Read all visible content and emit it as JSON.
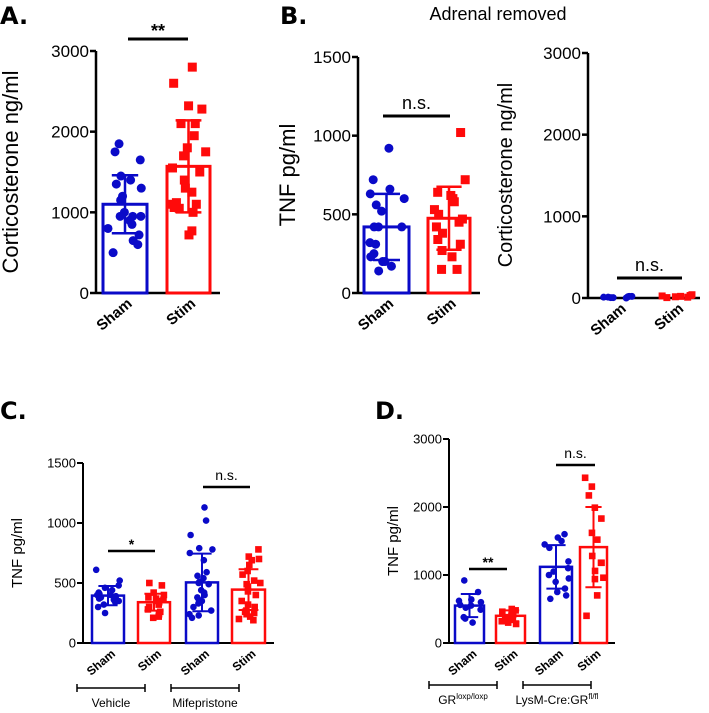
{
  "colors": {
    "sham": "#0a0ac8",
    "stim": "#ff0a0a",
    "axis": "#000000"
  },
  "panel_B_title": "Adrenal removed",
  "chart_data": [
    {
      "panel": "A.",
      "type": "bar",
      "ylabel": "Corticosterone ng/ml",
      "ylim": [
        0,
        3000
      ],
      "yticks": [
        "0",
        "1000",
        "2000",
        "3000"
      ],
      "ytick_values": [
        0,
        1000,
        2000,
        3000
      ],
      "categories": [
        "Sham",
        "Stim"
      ],
      "series": [
        {
          "name": "Sham",
          "marker": "circle",
          "mean": 1100,
          "sd": 360,
          "points": [
            1850,
            1750,
            1650,
            1450,
            1400,
            1350,
            1300,
            1200,
            1150,
            1000,
            950,
            950,
            950,
            900,
            850,
            800,
            720,
            650,
            600,
            500
          ]
        },
        {
          "name": "Stim",
          "marker": "square",
          "mean": 1570,
          "sd": 570,
          "points": [
            2800,
            2600,
            2320,
            2280,
            2100,
            2100,
            1950,
            1800,
            1750,
            1700,
            1550,
            1500,
            1400,
            1300,
            1250,
            1120,
            1100,
            1100,
            1060,
            1050,
            1000,
            770,
            720
          ]
        }
      ],
      "significance": [
        {
          "label": "**",
          "groups": [
            0,
            1
          ]
        }
      ],
      "groups": []
    },
    {
      "panel": "B.",
      "type": "bar",
      "ylabel": "TNF pg/ml",
      "ylim": [
        0,
        1500
      ],
      "yticks": [
        "0",
        "500",
        "1000",
        "1500"
      ],
      "ytick_values": [
        0,
        500,
        1000,
        1500
      ],
      "categories": [
        "Sham",
        "Stim"
      ],
      "series": [
        {
          "name": "Sham",
          "marker": "circle",
          "mean": 420,
          "sd": 210,
          "points": [
            920,
            720,
            660,
            630,
            600,
            560,
            520,
            420,
            420,
            420,
            320,
            310,
            250,
            230,
            200,
            200,
            170,
            140
          ]
        },
        {
          "name": "Stim",
          "marker": "square",
          "mean": 475,
          "sd": 200,
          "points": [
            1020,
            720,
            640,
            620,
            600,
            580,
            530,
            500,
            470,
            450,
            420,
            380,
            340,
            310,
            270,
            230,
            150,
            150
          ]
        }
      ],
      "significance": [
        {
          "label": "n.s.",
          "groups": [
            0,
            1
          ]
        }
      ],
      "groups": []
    },
    {
      "panel": "",
      "type": "scatter",
      "ylabel": "Corticosterone ng/ml",
      "ylim": [
        0,
        3000
      ],
      "yticks": [
        "0",
        "1000",
        "2000",
        "3000"
      ],
      "ytick_values": [
        0,
        1000,
        2000,
        3000
      ],
      "categories": [
        "Sham",
        "Stim"
      ],
      "series": [
        {
          "name": "Sham",
          "marker": "circle",
          "mean": 11,
          "sd": 7,
          "points": [
            20,
            10,
            5,
            0,
            5,
            10,
            15,
            20
          ]
        },
        {
          "name": "Stim",
          "marker": "square",
          "mean": 22,
          "sd": 11,
          "points": [
            25,
            30,
            10,
            5,
            40,
            20,
            15,
            30
          ]
        }
      ],
      "significance": [
        {
          "label": "n.s.",
          "groups": [
            0,
            1
          ]
        }
      ],
      "groups": []
    },
    {
      "panel": "C.",
      "type": "bar",
      "ylabel": "TNF pg/ml",
      "ylim": [
        0,
        1500
      ],
      "yticks": [
        "0",
        "500",
        "1000",
        "1500"
      ],
      "ytick_values": [
        0,
        500,
        1000,
        1500
      ],
      "categories": [
        "Sham",
        "Stim",
        "Sham",
        "Stim"
      ],
      "series": [
        {
          "name": "Sham",
          "marker": "circle",
          "mean": 395,
          "sd": 80,
          "points": [
            610,
            520,
            480,
            460,
            440,
            420,
            410,
            400,
            400,
            390,
            380,
            370,
            360,
            350,
            340,
            320,
            300,
            250
          ]
        },
        {
          "name": "Stim",
          "marker": "square",
          "mean": 340,
          "sd": 70,
          "points": [
            500,
            480,
            420,
            400,
            380,
            370,
            360,
            350,
            340,
            320,
            300,
            280,
            260,
            240,
            220,
            210
          ]
        },
        {
          "name": "Sham",
          "marker": "circle",
          "mean": 505,
          "sd": 240,
          "points": [
            1130,
            1020,
            900,
            790,
            780,
            750,
            690,
            590,
            560,
            540,
            510,
            500,
            490,
            440,
            420,
            400,
            380,
            360,
            350,
            330,
            300,
            270,
            240,
            230,
            210
          ]
        },
        {
          "name": "Stim",
          "marker": "square",
          "mean": 445,
          "sd": 170,
          "points": [
            780,
            720,
            690,
            700,
            650,
            600,
            570,
            520,
            500,
            490,
            470,
            430,
            400,
            350,
            320,
            300,
            270,
            260,
            250,
            240,
            220,
            200,
            190
          ]
        }
      ],
      "significance": [
        {
          "label": "*",
          "groups": [
            0,
            1
          ]
        },
        {
          "label": "n.s.",
          "groups": [
            2,
            3
          ]
        }
      ],
      "groups": [
        {
          "base": "Vehicle",
          "sup": ""
        },
        {
          "base": "Mifepristone",
          "sup": ""
        }
      ]
    },
    {
      "panel": "D.",
      "type": "bar",
      "ylabel": "TNF pg/ml",
      "ylim": [
        0,
        3000
      ],
      "yticks": [
        "0",
        "1000",
        "2000",
        "3000"
      ],
      "ytick_values": [
        0,
        1000,
        2000,
        3000
      ],
      "categories": [
        "Sham",
        "Stim",
        "Sham",
        "Stim"
      ],
      "series": [
        {
          "name": "Sham",
          "marker": "circle",
          "mean": 550,
          "sd": 170,
          "points": [
            920,
            750,
            640,
            620,
            600,
            560,
            550,
            520,
            490,
            380,
            360,
            300
          ]
        },
        {
          "name": "Stim",
          "marker": "square",
          "mean": 400,
          "sd": 80,
          "points": [
            500,
            480,
            460,
            440,
            420,
            400,
            380,
            360,
            340,
            320,
            300,
            280
          ]
        },
        {
          "name": "Sham",
          "marker": "circle",
          "mean": 1120,
          "sd": 320,
          "points": [
            1600,
            1550,
            1500,
            1450,
            1400,
            1200,
            1100,
            1050,
            1000,
            950,
            900,
            800,
            750,
            700,
            650
          ]
        },
        {
          "name": "Stim",
          "marker": "square",
          "mean": 1410,
          "sd": 590,
          "points": [
            2430,
            2300,
            2170,
            1990,
            1830,
            1620,
            1520,
            1280,
            1180,
            1180,
            1060,
            960,
            940,
            700,
            400
          ]
        }
      ],
      "significance": [
        {
          "label": "**",
          "groups": [
            0,
            1
          ]
        },
        {
          "label": "n.s.",
          "groups": [
            2,
            3
          ]
        }
      ],
      "groups": [
        {
          "base": "GR",
          "sup": "loxp/loxp"
        },
        {
          "base": "LysM-Cre:GR",
          "sup": "fl/fl"
        }
      ]
    }
  ]
}
